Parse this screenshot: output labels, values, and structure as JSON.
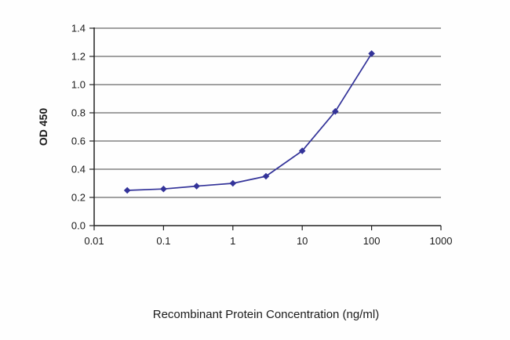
{
  "chart_data": {
    "type": "line",
    "title": "",
    "xlabel": "Recombinant Protein Concentration (ng/ml)",
    "ylabel": "OD 450",
    "xscale": "log",
    "xlim": [
      0.01,
      1000
    ],
    "ylim": [
      0,
      1.4
    ],
    "x": [
      0.03,
      0.1,
      0.3,
      1,
      3,
      10,
      30,
      100
    ],
    "y": [
      0.25,
      0.26,
      0.28,
      0.3,
      0.35,
      0.53,
      0.81,
      1.22
    ],
    "x_ticks": [
      0.01,
      0.1,
      1,
      10,
      100,
      1000
    ],
    "x_tick_labels": [
      "0.01",
      "0.1",
      "1",
      "10",
      "100",
      "1000"
    ],
    "y_ticks": [
      0,
      0.2,
      0.4,
      0.6,
      0.8,
      1.0,
      1.2,
      1.4
    ],
    "y_tick_labels": [
      "0.0",
      "0.2",
      "0.4",
      "0.6",
      "0.8",
      "1.0",
      "1.2",
      "1.4"
    ],
    "grid": true,
    "legend": false,
    "line_color": "#333399",
    "marker": "diamond",
    "grid_color": "#444444",
    "axis_color": "#222222"
  }
}
